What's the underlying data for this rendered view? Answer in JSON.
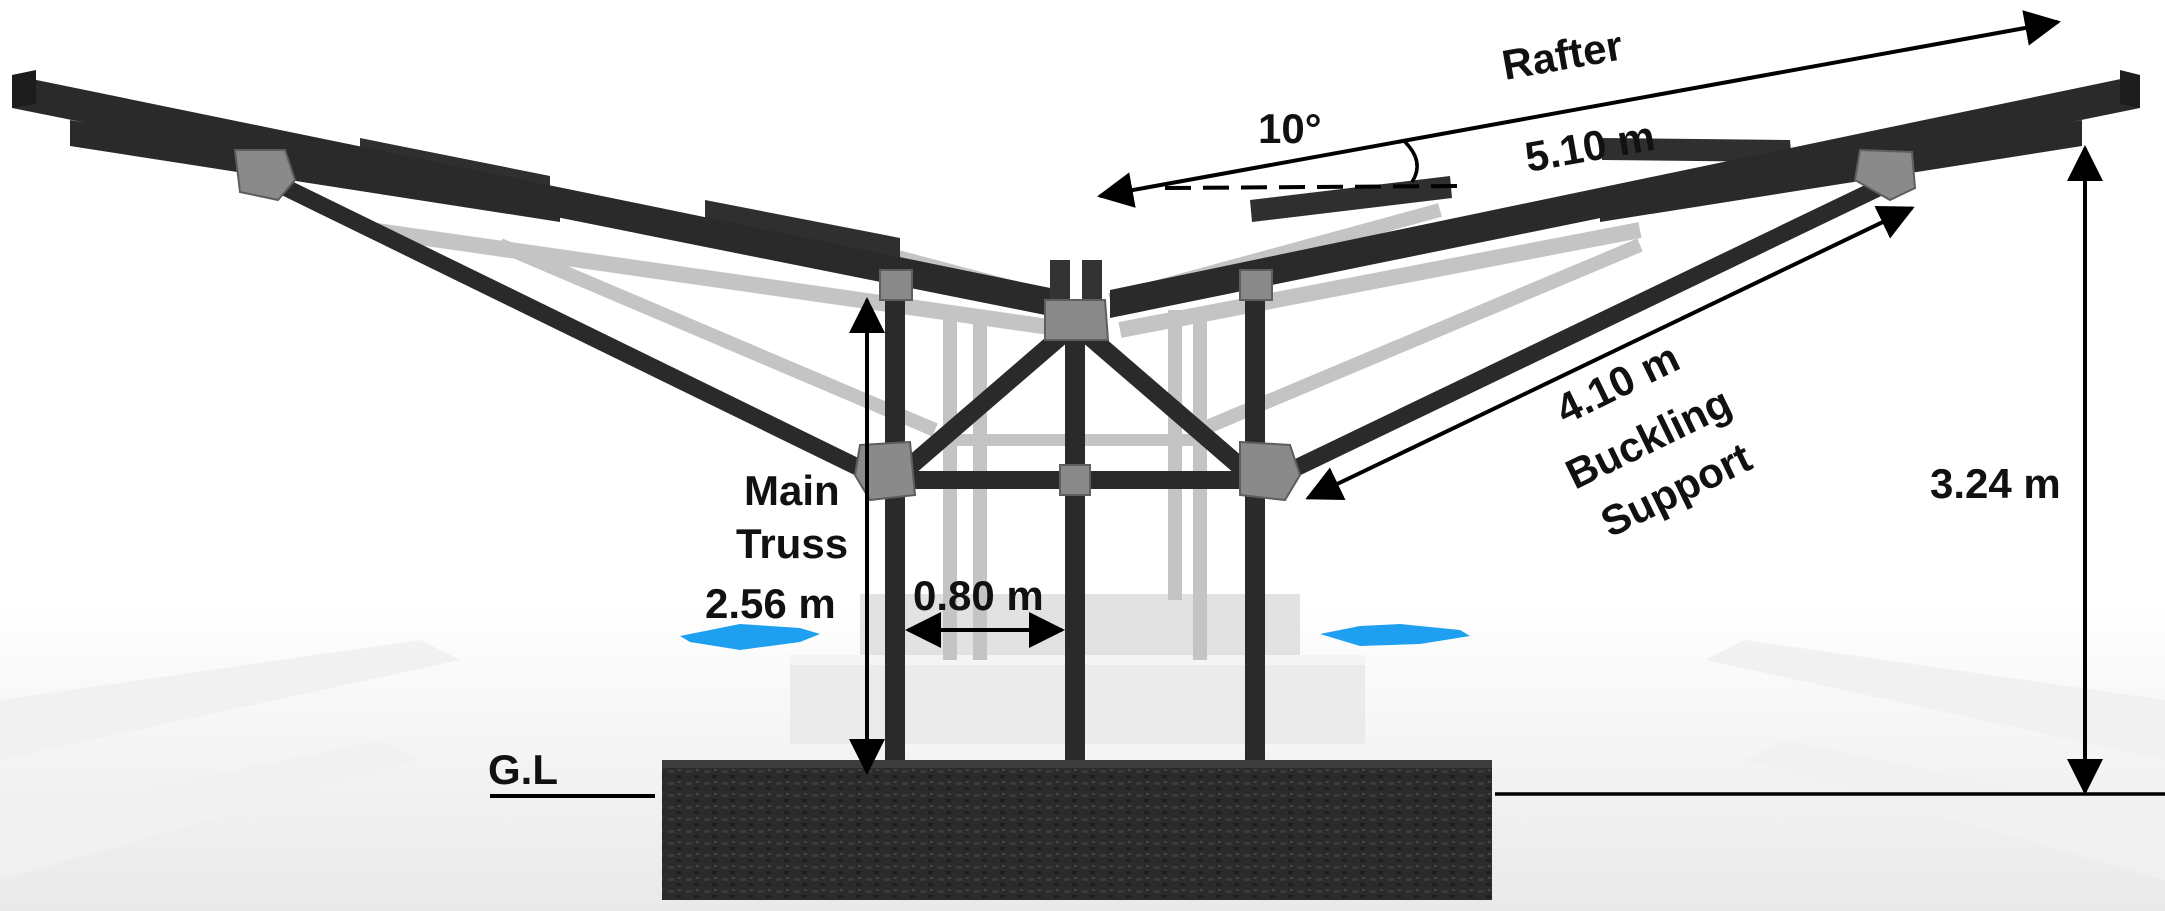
{
  "labels": {
    "rafter": "Rafter",
    "angle": "10°",
    "rafter_length": "5.10 m",
    "buckling_length": "4.10 m",
    "buckling_line1": "Buckling",
    "buckling_line2": "Support",
    "height_total": "3.24 m",
    "main_truss_line1": "Main",
    "main_truss_line2": "Truss",
    "column_height": "2.56 m",
    "column_spacing": "0.80 m",
    "ground_level": "G.L"
  },
  "colors": {
    "steel_dark": "#2a2a2a",
    "steel_faded": "#bdbdbd",
    "joint_plate": "#8a8a8a",
    "foundation": "#2b2b2b",
    "accent_arrow": "#1e9ff0",
    "dimension_line": "#000000"
  }
}
